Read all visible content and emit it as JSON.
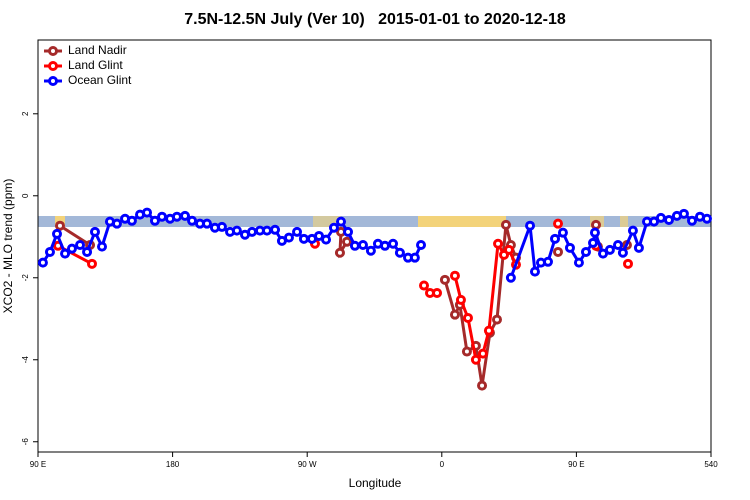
{
  "chart_data": {
    "type": "line",
    "title": "7.5N-12.5N July (Ver 10)   2015-01-01 to 2020-12-18",
    "x_label": "Longitude",
    "y_label": "XCO2 - MLO trend (ppm)",
    "xlim": [
      90,
      540
    ],
    "ylim": [
      -6.25,
      3.8
    ],
    "xticks": [
      {
        "value": 90,
        "label": "90 E"
      },
      180,
      {
        "value": 270,
        "label": "90 W"
      },
      {
        "value": 360,
        "label": "0"
      },
      {
        "value": 450,
        "label": "90 E"
      },
      540
    ],
    "yticks": [
      -6,
      -4,
      -2,
      0,
      2
    ],
    "legend": "top-left",
    "series": [
      {
        "name": "Land Nadir",
        "color": "#a52a2a",
        "x": [
          104.7,
          124.8,
          null,
          292.6,
          291.9,
          296.6,
          null,
          362.1,
          368.8,
          372.1,
          376.8,
          382.8,
          386.9,
          392.2,
          396.9,
          402.9,
          406.2,
          409.6,
          null,
          437.7,
          null,
          463.1,
          464.4,
          null,
          483.8
        ],
        "values": [
          -0.73,
          -1.2,
          null,
          -0.88,
          -1.39,
          -1.12,
          null,
          -2.05,
          -2.9,
          -2.66,
          -3.8,
          -3.66,
          -4.63,
          -3.34,
          -3.02,
          -0.71,
          -1.2,
          -1.51,
          null,
          -1.37,
          null,
          -0.71,
          -1.24,
          null,
          -1.2
        ]
      },
      {
        "name": "Land Glint",
        "color": "#ff0000",
        "x": [
          103.4,
          126.1,
          null,
          275.2,
          null,
          348.1,
          352.1,
          356.8,
          null,
          368.8,
          372.8,
          377.5,
          382.8,
          387.5,
          391.5,
          397.6,
          401.6,
          404.9,
          409.6,
          null,
          437.7,
          null,
          463.1,
          null,
          484.5
        ],
        "values": [
          -1.22,
          -1.66,
          null,
          -1.17,
          null,
          -2.19,
          -2.37,
          -2.37,
          null,
          -1.95,
          -2.54,
          -2.98,
          -4.0,
          -3.85,
          -3.29,
          -1.17,
          -1.44,
          -1.32,
          -1.68,
          null,
          -0.68,
          null,
          -1.22,
          null,
          -1.66
        ]
      },
      {
        "name": "Ocean Glint",
        "color": "#0000ff",
        "x": [
          93.3,
          98,
          102.7,
          108.1,
          112.7,
          118.1,
          122.8,
          128.1,
          132.8,
          138.1,
          142.8,
          148.2,
          152.8,
          158.2,
          162.9,
          168.2,
          172.9,
          178.3,
          182.9,
          188.3,
          193,
          198.3,
          203,
          208.3,
          213,
          218.4,
          223,
          228.4,
          233.1,
          238.4,
          243.1,
          248.5,
          253.1,
          257.8,
          263.2,
          267.8,
          273.2,
          277.9,
          282.6,
          287.9,
          292.6,
          297.3,
          301.9,
          307.3,
          312.6,
          317.3,
          322,
          327.4,
          332,
          337.4,
          342,
          346.1,
          null,
          406.2,
          419,
          422.3,
          426.3,
          431,
          435.7,
          441,
          445.7,
          451.7,
          456.4,
          461.1,
          462.4,
          467.8,
          472.4,
          477.8,
          481.1,
          487.8,
          491.8,
          497.2,
          501.9,
          506.5,
          511.9,
          517.2,
          521.9,
          527.3,
          532.6,
          537.3
        ],
        "values": [
          -1.63,
          -1.37,
          -0.93,
          -1.41,
          -1.29,
          -1.2,
          -1.37,
          -0.88,
          -1.24,
          -0.63,
          -0.68,
          -0.56,
          -0.61,
          -0.46,
          -0.41,
          -0.61,
          -0.51,
          -0.56,
          -0.51,
          -0.49,
          -0.61,
          -0.68,
          -0.68,
          -0.78,
          -0.76,
          -0.88,
          -0.85,
          -0.95,
          -0.88,
          -0.85,
          -0.85,
          -0.83,
          -1.1,
          -1.02,
          -0.88,
          -1.05,
          -1.05,
          -0.98,
          -1.07,
          -0.78,
          -0.63,
          -0.88,
          -1.22,
          -1.2,
          -1.34,
          -1.17,
          -1.22,
          -1.17,
          -1.39,
          -1.51,
          -1.51,
          -1.2,
          null,
          -2.0,
          -0.73,
          -1.85,
          -1.63,
          -1.61,
          -1.05,
          -0.9,
          -1.27,
          -1.63,
          -1.37,
          -1.15,
          -0.9,
          -1.41,
          -1.32,
          -1.2,
          -1.39,
          -0.85,
          -1.27,
          -0.63,
          -0.63,
          -0.54,
          -0.59,
          -0.49,
          -0.44,
          -0.61,
          -0.51,
          -0.56
        ]
      }
    ]
  }
}
